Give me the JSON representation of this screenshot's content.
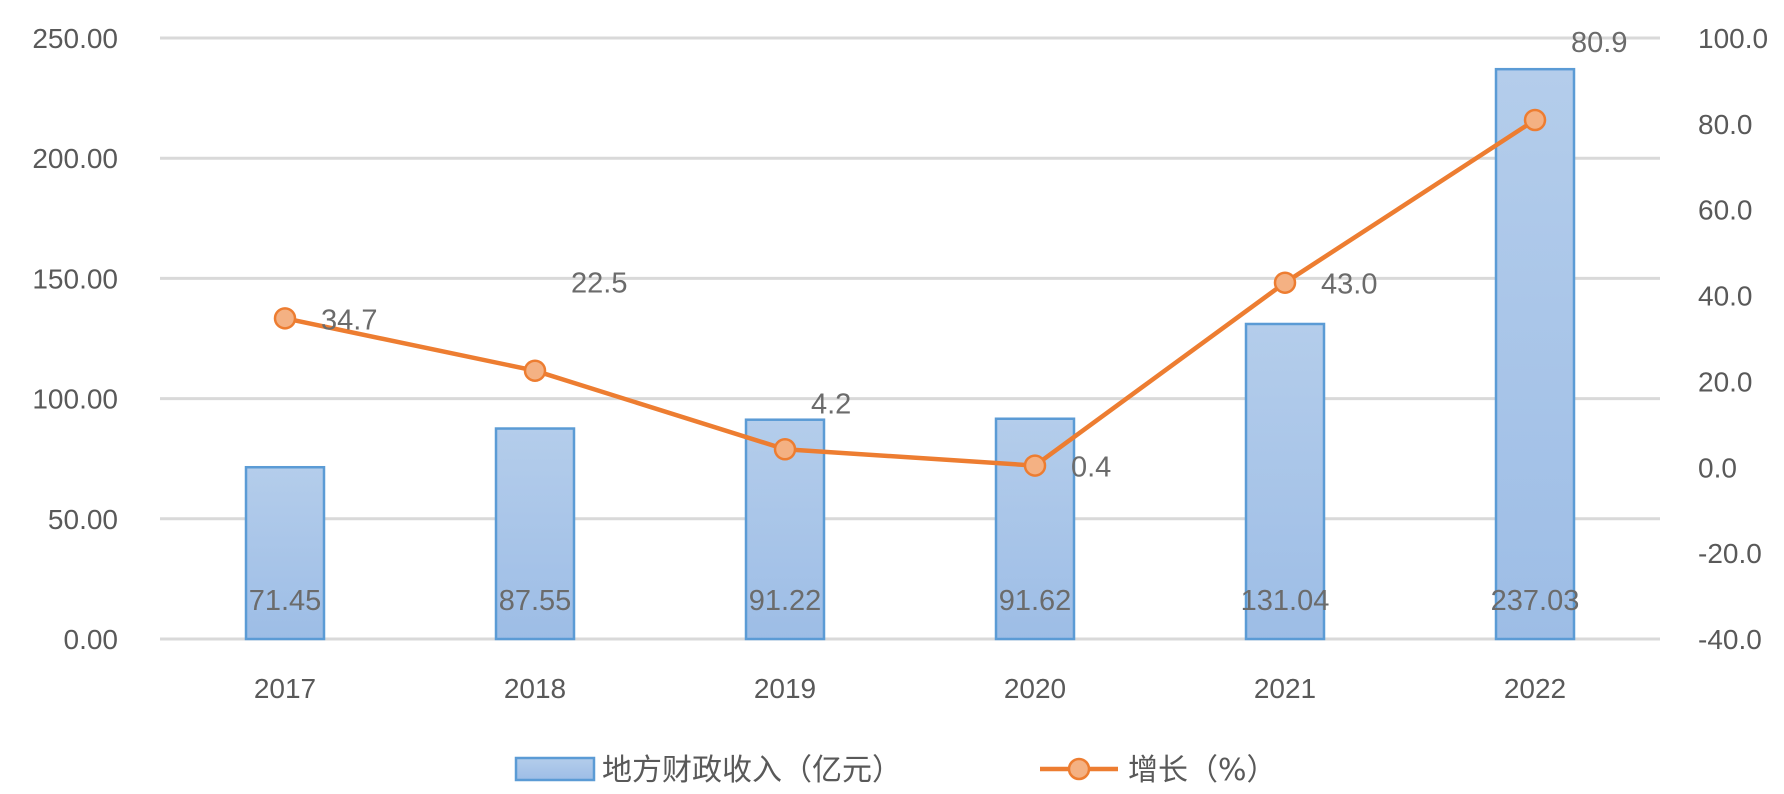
{
  "chart_data": {
    "type": "bar",
    "categories": [
      "2017",
      "2018",
      "2019",
      "2020",
      "2021",
      "2022"
    ],
    "series": [
      {
        "name": "地方财政收入（亿元）",
        "type": "bar",
        "axis": "left",
        "values": [
          71.45,
          87.55,
          91.22,
          91.62,
          131.04,
          237.03
        ],
        "labels": [
          "71.45",
          "87.55",
          "91.22",
          "91.62",
          "131.04",
          "237.03"
        ],
        "color": "#9dbde6",
        "border_color": "#5b9bd5"
      },
      {
        "name": "增长（%）",
        "type": "line",
        "axis": "right",
        "values": [
          34.7,
          22.5,
          4.2,
          0.4,
          43.0,
          80.9
        ],
        "labels": [
          "34.7",
          "22.5",
          "4.2",
          "0.4",
          "43.0",
          "80.9"
        ],
        "color": "#ed7d31",
        "marker_color": "#f4b183"
      }
    ],
    "y_left": {
      "range": [
        0,
        250
      ],
      "ticks": [
        "0.00",
        "50.00",
        "100.00",
        "150.00",
        "200.00",
        "250.00"
      ]
    },
    "y_right": {
      "range": [
        -40,
        100
      ],
      "ticks": [
        "-40.0",
        "-20.0",
        "0.0",
        "20.0",
        "40.0",
        "60.0",
        "80.0",
        "100.0"
      ]
    },
    "grid": true,
    "legend_position": "bottom"
  }
}
